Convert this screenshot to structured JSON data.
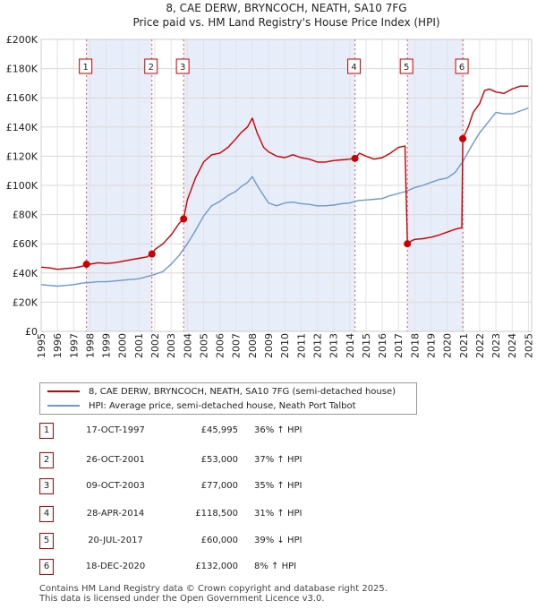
{
  "chart_data": {
    "type": "line",
    "title": "8, CAE DERW, BRYNCOCH, NEATH, SA10 7FG",
    "subtitle": "Price paid vs. HM Land Registry's House Price Index (HPI)",
    "xlim": [
      1995,
      2025.2
    ],
    "ylim": [
      0,
      200000
    ],
    "x_ticks": [
      1995,
      1996,
      1997,
      1998,
      1999,
      2000,
      2001,
      2002,
      2003,
      2004,
      2005,
      2006,
      2007,
      2008,
      2009,
      2010,
      2011,
      2012,
      2013,
      2014,
      2015,
      2016,
      2017,
      2018,
      2019,
      2020,
      2021,
      2022,
      2023,
      2024,
      2025
    ],
    "y_ticks": [
      0,
      20000,
      40000,
      60000,
      80000,
      100000,
      120000,
      140000,
      160000,
      180000,
      200000
    ],
    "y_tick_labels": [
      "£0",
      "£20K",
      "£40K",
      "£60K",
      "£80K",
      "£100K",
      "£120K",
      "£140K",
      "£160K",
      "£180K",
      "£200K"
    ],
    "grid": true,
    "shaded_spans": [
      [
        1997.79,
        2001.82
      ],
      [
        2003.77,
        2014.32
      ],
      [
        2017.55,
        2020.96
      ]
    ],
    "series": [
      {
        "name": "8, CAE DERW, BRYNCOCH, NEATH, SA10 7FG (semi-detached house)",
        "color": "#cc0000",
        "x": [
          1995,
          1995.5,
          1996,
          1996.5,
          1997,
          1997.5,
          1997.79,
          1998,
          1998.5,
          1999,
          1999.5,
          2000,
          2000.5,
          2001,
          2001.5,
          2001.82,
          2002,
          2002.5,
          2003,
          2003.5,
          2003.77,
          2004,
          2004.5,
          2005,
          2005.5,
          2006,
          2006.5,
          2007,
          2007.3,
          2007.7,
          2008,
          2008.3,
          2008.7,
          2009,
          2009.5,
          2010,
          2010.5,
          2011,
          2011.5,
          2012,
          2012.5,
          2013,
          2013.5,
          2014,
          2014.32,
          2014.6,
          2015,
          2015.5,
          2016,
          2016.5,
          2017,
          2017.4,
          2017.55,
          2017.8,
          2018,
          2018.5,
          2019,
          2019.5,
          2020,
          2020.5,
          2020.9,
          2020.96,
          2021.3,
          2021.6,
          2022,
          2022.3,
          2022.6,
          2023,
          2023.5,
          2024,
          2024.5,
          2025
        ],
        "y": [
          44000,
          43500,
          42500,
          43000,
          43500,
          44500,
          45995,
          46000,
          47000,
          46500,
          47000,
          48000,
          49000,
          50000,
          51000,
          53000,
          56000,
          60000,
          66000,
          74000,
          77000,
          90000,
          105000,
          116000,
          121000,
          122000,
          126000,
          132000,
          136000,
          140000,
          146000,
          136000,
          126000,
          123000,
          120000,
          119000,
          121000,
          119000,
          118000,
          116000,
          116000,
          117000,
          117500,
          118000,
          118500,
          122000,
          120000,
          118000,
          119000,
          122000,
          126000,
          127000,
          60000,
          62000,
          63000,
          63500,
          64500,
          66000,
          68000,
          70000,
          71000,
          132000,
          140000,
          150000,
          156000,
          165000,
          166000,
          164000,
          163000,
          166000,
          168000,
          168000
        ]
      },
      {
        "name": "HPI: Average price, semi-detached house, Neath Port Talbot",
        "color": "#6f98cc",
        "x": [
          1995,
          1995.5,
          1996,
          1996.5,
          1997,
          1997.5,
          1998,
          1998.5,
          1999,
          1999.5,
          2000,
          2000.5,
          2001,
          2001.5,
          2002,
          2002.5,
          2003,
          2003.5,
          2004,
          2004.5,
          2005,
          2005.5,
          2006,
          2006.5,
          2007,
          2007.3,
          2007.7,
          2008,
          2008.3,
          2008.7,
          2009,
          2009.5,
          2010,
          2010.5,
          2011,
          2011.5,
          2012,
          2012.5,
          2013,
          2013.5,
          2014,
          2014.5,
          2015,
          2015.5,
          2016,
          2016.5,
          2017,
          2017.5,
          2018,
          2018.5,
          2019,
          2019.5,
          2020,
          2020.5,
          2021,
          2021.5,
          2022,
          2022.5,
          2023,
          2023.5,
          2024,
          2024.5,
          2025
        ],
        "y": [
          32000,
          31500,
          31000,
          31500,
          32000,
          33000,
          33500,
          34000,
          34000,
          34500,
          35000,
          35500,
          36000,
          37500,
          39000,
          41000,
          46000,
          52000,
          60000,
          69000,
          79000,
          86000,
          89000,
          93000,
          96000,
          99000,
          102000,
          106000,
          100000,
          93000,
          88000,
          86000,
          88000,
          88500,
          87500,
          87000,
          86000,
          86000,
          86500,
          87500,
          88000,
          89500,
          90000,
          90500,
          91000,
          93000,
          94500,
          96000,
          98500,
          100000,
          102000,
          104000,
          105000,
          109000,
          117000,
          127000,
          136000,
          143000,
          150000,
          149000,
          149000,
          151000,
          153000
        ]
      }
    ],
    "sales": [
      {
        "label": "1",
        "x": 1997.79,
        "y": 45995
      },
      {
        "label": "2",
        "x": 2001.82,
        "y": 53000
      },
      {
        "label": "3",
        "x": 2003.77,
        "y": 77000
      },
      {
        "label": "4",
        "x": 2014.32,
        "y": 118500
      },
      {
        "label": "5",
        "x": 2017.55,
        "y": 60000
      },
      {
        "label": "6",
        "x": 2020.96,
        "y": 132000
      }
    ]
  },
  "legend": {
    "price_paid": "8, CAE DERW, BRYNCOCH, NEATH, SA10 7FG (semi-detached house)",
    "hpi": "HPI: Average price, semi-detached house, Neath Port Talbot"
  },
  "sales_table": [
    {
      "num": "1",
      "date": "17-OCT-1997",
      "price": "£45,995",
      "hpi": "36% ↑ HPI"
    },
    {
      "num": "2",
      "date": "26-OCT-2001",
      "price": "£53,000",
      "hpi": "37% ↑ HPI"
    },
    {
      "num": "3",
      "date": "09-OCT-2003",
      "price": "£77,000",
      "hpi": "35% ↑ HPI"
    },
    {
      "num": "4",
      "date": "28-APR-2014",
      "price": "£118,500",
      "hpi": "31% ↑ HPI"
    },
    {
      "num": "5",
      "date": "20-JUL-2017",
      "price": "£60,000",
      "hpi": "39% ↓ HPI"
    },
    {
      "num": "6",
      "date": "18-DEC-2020",
      "price": "£132,000",
      "hpi": "8% ↑ HPI"
    }
  ],
  "footer": {
    "line1": "Contains HM Land Registry data © Crown copyright and database right 2025.",
    "line2": "This data is licensed under the Open Government Licence v3.0."
  }
}
